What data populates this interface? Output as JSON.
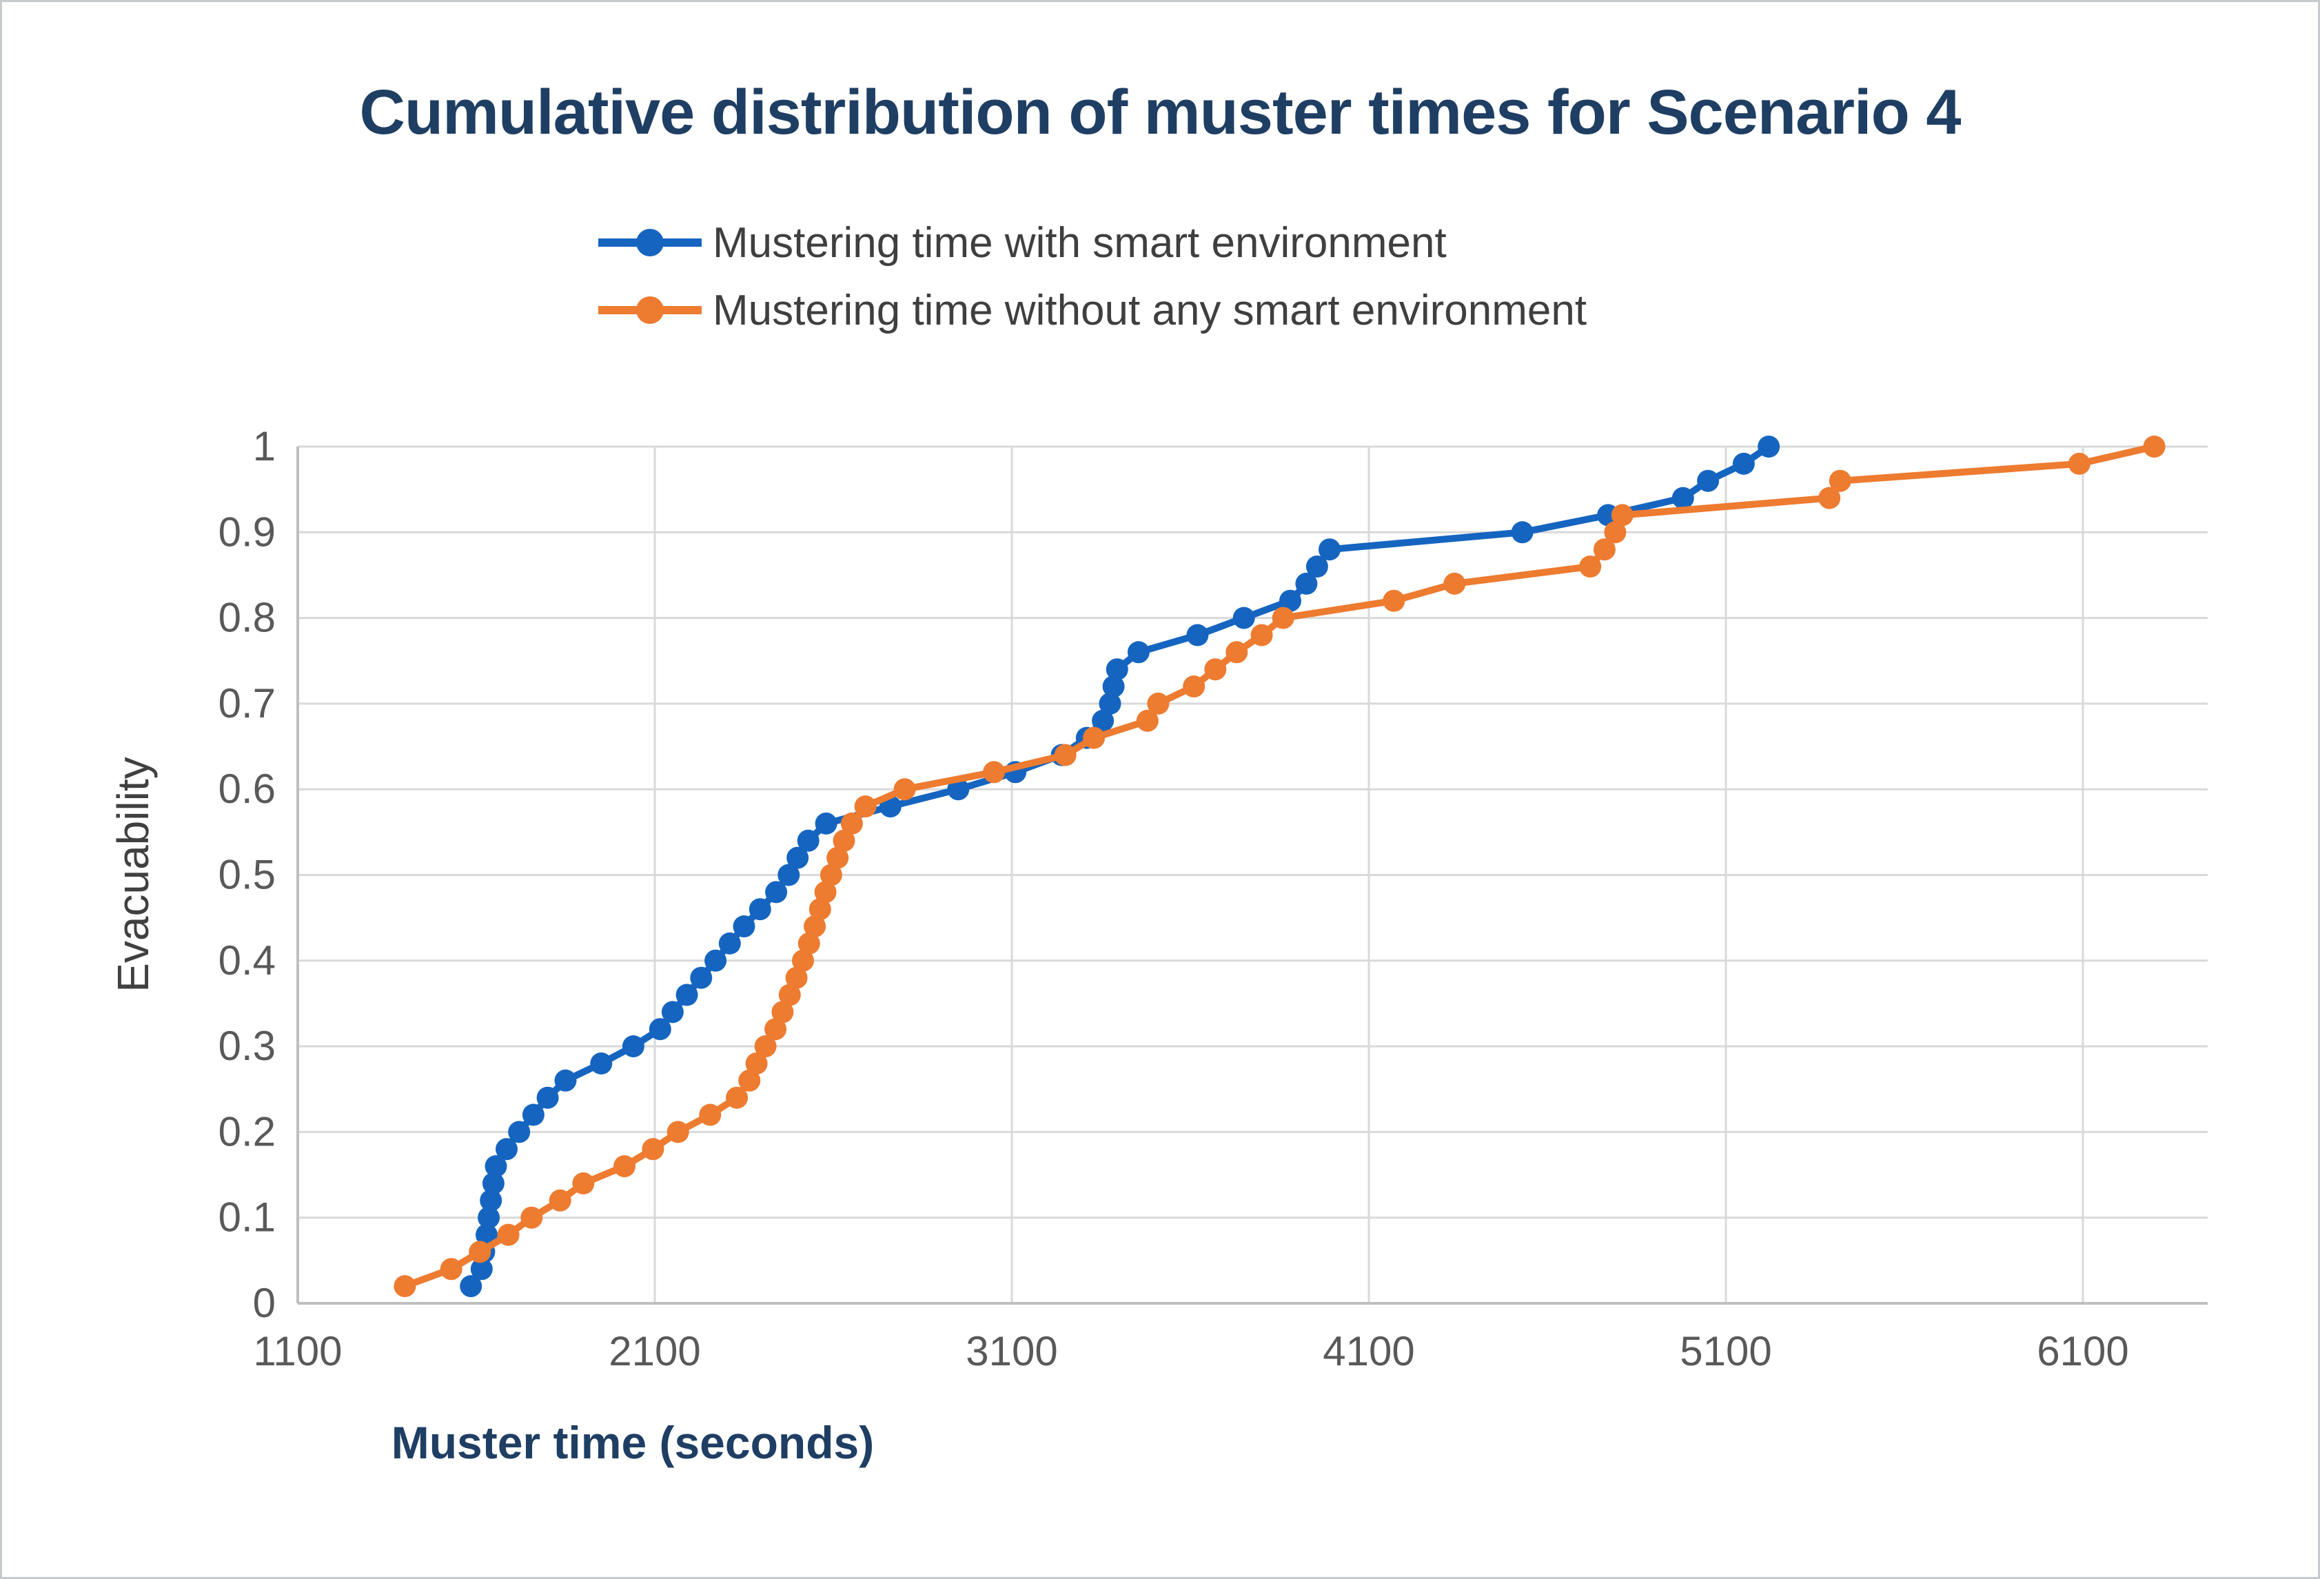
{
  "figure": {
    "title": "Cumulative distribution of muster times for Scenario 4"
  },
  "legend": {
    "position": "top",
    "items": [
      {
        "label": "Mustering time with smart environment",
        "color": "#1565c0"
      },
      {
        "label": "Mustering time without any smart environment",
        "color": "#ed7b30"
      }
    ]
  },
  "axes": {
    "x_title": "Muster time (seconds)",
    "y_title": "Evacuability",
    "x_ticks": [
      1100,
      2100,
      3100,
      4100,
      5100,
      6100
    ],
    "y_ticks": [
      "0",
      "0.1",
      "0.2",
      "0.3",
      "0.4",
      "0.5",
      "0.6",
      "0.7",
      "0.8",
      "0.9",
      "1"
    ],
    "tick_color": "#595959",
    "grid_color": "#d9d9d9",
    "axis_color": "#bfbfbf"
  },
  "chart_data": {
    "type": "line",
    "title": "Cumulative distribution of muster times for Scenario 4",
    "xlabel": "Muster time (seconds)",
    "ylabel": "Evacuability",
    "xlim": [
      1100,
      6500
    ],
    "ylim": [
      0,
      1
    ],
    "grid": true,
    "legend_position": "top",
    "marker": "circle",
    "series": [
      {
        "name": "Mustering time with smart environment",
        "color": "#1565c0",
        "points": [
          [
            1585,
            0.02
          ],
          [
            1615,
            0.04
          ],
          [
            1622,
            0.06
          ],
          [
            1629,
            0.08
          ],
          [
            1635,
            0.1
          ],
          [
            1641,
            0.12
          ],
          [
            1648,
            0.14
          ],
          [
            1655,
            0.16
          ],
          [
            1685,
            0.18
          ],
          [
            1720,
            0.2
          ],
          [
            1760,
            0.22
          ],
          [
            1800,
            0.24
          ],
          [
            1850,
            0.26
          ],
          [
            1950,
            0.28
          ],
          [
            2040,
            0.3
          ],
          [
            2115,
            0.32
          ],
          [
            2150,
            0.34
          ],
          [
            2190,
            0.36
          ],
          [
            2230,
            0.38
          ],
          [
            2270,
            0.4
          ],
          [
            2310,
            0.42
          ],
          [
            2350,
            0.44
          ],
          [
            2395,
            0.46
          ],
          [
            2440,
            0.48
          ],
          [
            2475,
            0.5
          ],
          [
            2500,
            0.52
          ],
          [
            2530,
            0.54
          ],
          [
            2580,
            0.56
          ],
          [
            2760,
            0.58
          ],
          [
            2950,
            0.6
          ],
          [
            3110,
            0.62
          ],
          [
            3240,
            0.64
          ],
          [
            3310,
            0.66
          ],
          [
            3355,
            0.68
          ],
          [
            3375,
            0.7
          ],
          [
            3385,
            0.72
          ],
          [
            3395,
            0.74
          ],
          [
            3455,
            0.76
          ],
          [
            3620,
            0.78
          ],
          [
            3750,
            0.8
          ],
          [
            3880,
            0.82
          ],
          [
            3925,
            0.84
          ],
          [
            3955,
            0.86
          ],
          [
            3990,
            0.88
          ],
          [
            4530,
            0.9
          ],
          [
            4770,
            0.92
          ],
          [
            4980,
            0.94
          ],
          [
            5050,
            0.96
          ],
          [
            5150,
            0.98
          ],
          [
            5220,
            1.0
          ]
        ]
      },
      {
        "name": "Mustering time without any smart environment",
        "color": "#ed7b30",
        "points": [
          [
            1400,
            0.02
          ],
          [
            1530,
            0.04
          ],
          [
            1610,
            0.06
          ],
          [
            1690,
            0.08
          ],
          [
            1755,
            0.1
          ],
          [
            1835,
            0.12
          ],
          [
            1900,
            0.14
          ],
          [
            2015,
            0.16
          ],
          [
            2095,
            0.18
          ],
          [
            2165,
            0.2
          ],
          [
            2255,
            0.22
          ],
          [
            2330,
            0.24
          ],
          [
            2365,
            0.26
          ],
          [
            2385,
            0.28
          ],
          [
            2410,
            0.3
          ],
          [
            2438,
            0.32
          ],
          [
            2458,
            0.34
          ],
          [
            2478,
            0.36
          ],
          [
            2497,
            0.38
          ],
          [
            2515,
            0.4
          ],
          [
            2532,
            0.42
          ],
          [
            2548,
            0.44
          ],
          [
            2563,
            0.46
          ],
          [
            2578,
            0.48
          ],
          [
            2594,
            0.5
          ],
          [
            2612,
            0.52
          ],
          [
            2630,
            0.54
          ],
          [
            2652,
            0.56
          ],
          [
            2690,
            0.58
          ],
          [
            2800,
            0.6
          ],
          [
            3050,
            0.62
          ],
          [
            3250,
            0.64
          ],
          [
            3330,
            0.66
          ],
          [
            3480,
            0.68
          ],
          [
            3510,
            0.7
          ],
          [
            3610,
            0.72
          ],
          [
            3670,
            0.74
          ],
          [
            3730,
            0.76
          ],
          [
            3800,
            0.78
          ],
          [
            3860,
            0.8
          ],
          [
            4170,
            0.82
          ],
          [
            4340,
            0.84
          ],
          [
            4720,
            0.86
          ],
          [
            4760,
            0.88
          ],
          [
            4790,
            0.9
          ],
          [
            4810,
            0.92
          ],
          [
            5390,
            0.94
          ],
          [
            5420,
            0.96
          ],
          [
            6090,
            0.98
          ],
          [
            6300,
            1.0
          ]
        ]
      }
    ]
  }
}
